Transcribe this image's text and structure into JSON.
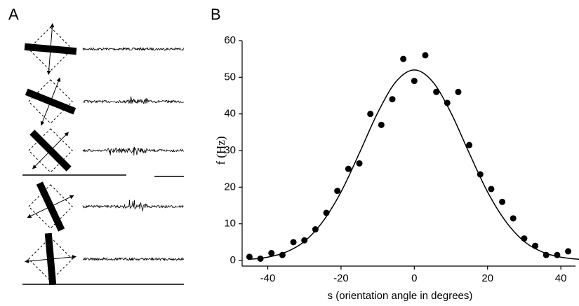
{
  "panel_labels": [
    "A",
    "B"
  ],
  "chart_data": {
    "type": "scatter",
    "x_label": "s (orientation angle in degrees)",
    "y_label": "f (Hz)",
    "x": [
      -45,
      -42,
      -39,
      -36,
      -33,
      -30,
      -27,
      -24,
      -21,
      -18,
      -15,
      -12,
      -9,
      -6,
      -3,
      0,
      3,
      6,
      9,
      12,
      15,
      18,
      21,
      24,
      27,
      30,
      33,
      36,
      39,
      42
    ],
    "values": [
      1,
      0.5,
      2,
      1.5,
      5,
      5.5,
      8.5,
      13,
      19,
      25,
      26.5,
      40,
      37,
      44,
      55,
      49,
      56,
      46,
      43,
      46,
      31.5,
      23.5,
      19.5,
      16,
      11.5,
      6,
      4,
      1.5,
      1.5,
      2.5
    ],
    "color": "#000000",
    "fit": {
      "x": [
        -45,
        -40,
        -35,
        -30,
        -25,
        -20,
        -15,
        -10,
        -5,
        0,
        5,
        10,
        15,
        20,
        25,
        30,
        35,
        40,
        45
      ],
      "values": [
        0.3,
        0.9,
        2.3,
        5.2,
        10.6,
        18.7,
        29.3,
        40.3,
        48.8,
        52,
        48.8,
        40.3,
        29.3,
        18.7,
        10.6,
        5.2,
        2.3,
        0.9,
        0.3
      ]
    },
    "xlim": [
      -47,
      44
    ],
    "ylim": [
      0,
      60
    ],
    "xticks": [
      -40,
      -20,
      0,
      20,
      40
    ],
    "yticks": [
      0,
      10,
      20,
      30,
      40,
      50,
      60
    ]
  }
}
